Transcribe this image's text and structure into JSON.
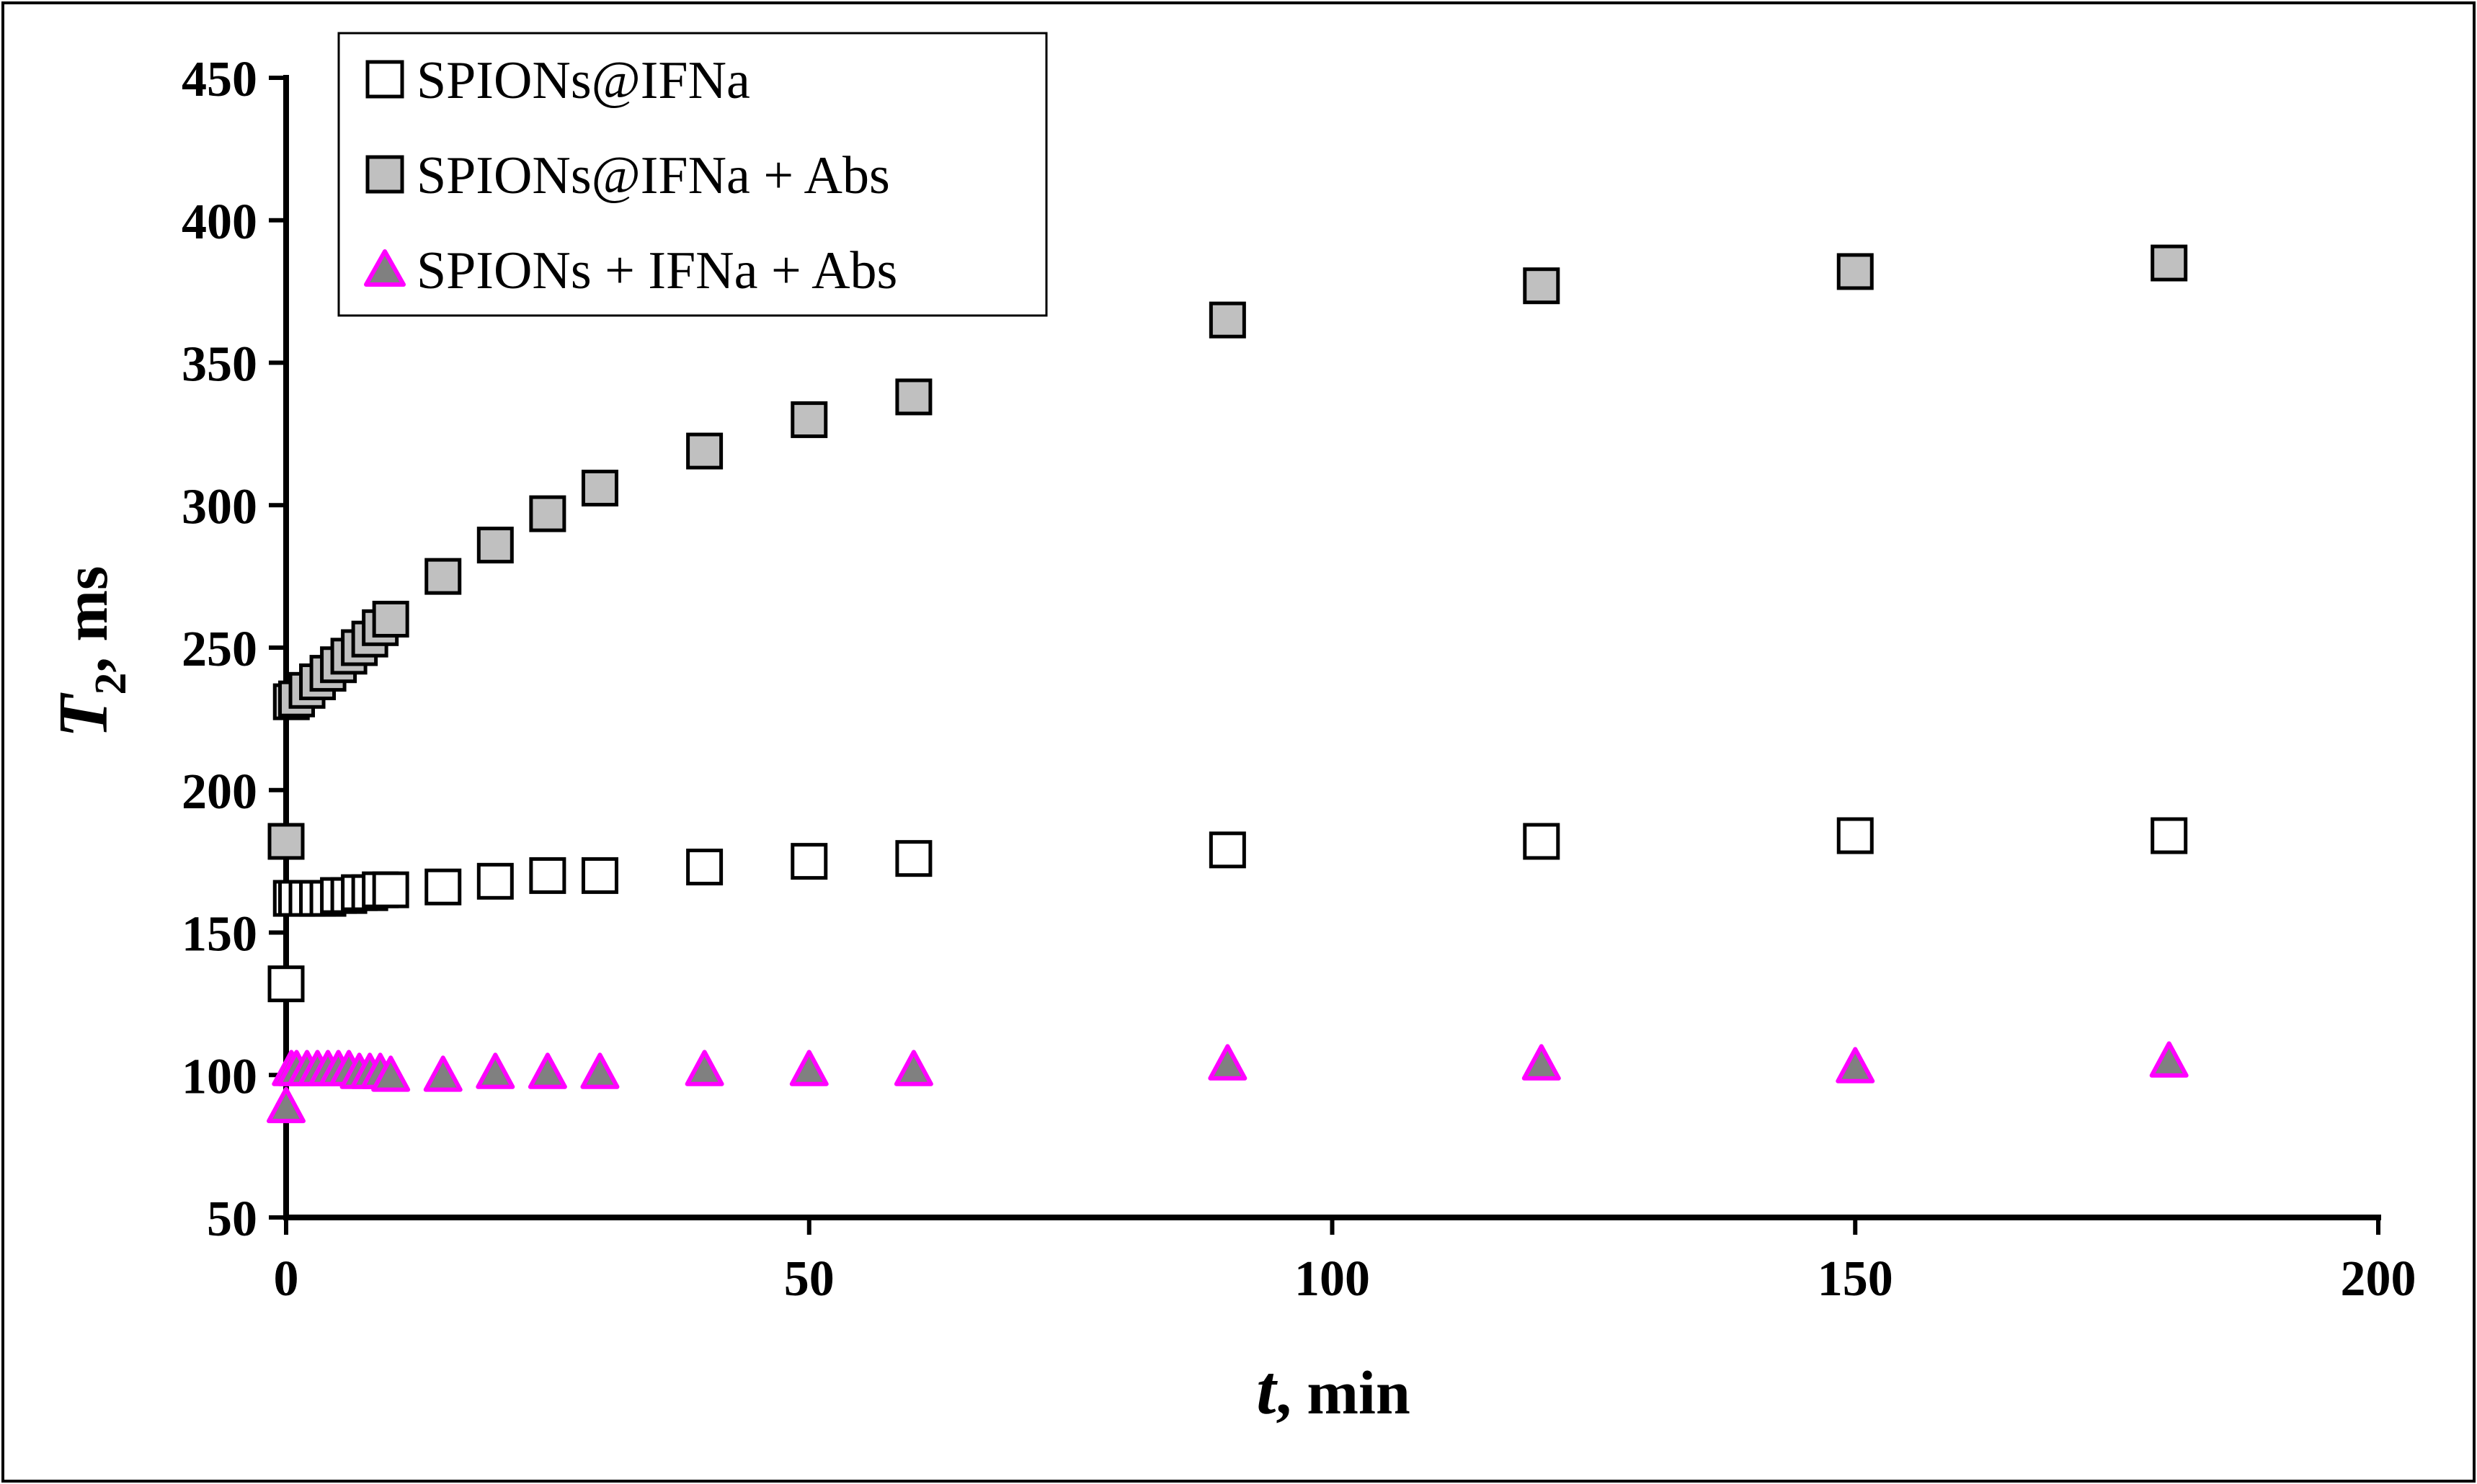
{
  "chart_data": {
    "type": "scatter",
    "title": "",
    "xlabel": {
      "var": "t",
      "unit": ", min"
    },
    "ylabel": {
      "var": "T",
      "sub": "2",
      "unit": ", ms"
    },
    "xlim": [
      0,
      200
    ],
    "ylim": [
      50,
      450
    ],
    "xticks": [
      0,
      50,
      100,
      150,
      200
    ],
    "yticks": [
      50,
      100,
      150,
      200,
      250,
      300,
      350,
      400,
      450
    ],
    "grid": false,
    "legend_position": "top-left",
    "series": [
      {
        "name": "SPIONs@IFNa",
        "marker": "square",
        "fill": "#ffffff",
        "stroke": "#000000",
        "x": [
          0,
          0.5,
          1,
          2,
          3,
          4,
          5,
          6,
          7,
          8,
          9,
          10,
          15,
          20,
          25,
          30,
          40,
          50,
          60,
          90,
          120,
          150,
          180
        ],
        "y": [
          132,
          162,
          162,
          162,
          162,
          162,
          163,
          163,
          164,
          164,
          165,
          165,
          166,
          168,
          170,
          170,
          173,
          175,
          176,
          179,
          182,
          184,
          184
        ]
      },
      {
        "name": "SPIONs@IFNa + Abs",
        "marker": "square",
        "fill": "#c0c0c0",
        "stroke": "#000000",
        "x": [
          0,
          0.5,
          1,
          2,
          3,
          4,
          5,
          6,
          7,
          8,
          9,
          10,
          15,
          20,
          25,
          30,
          40,
          50,
          60,
          90,
          120,
          150,
          180
        ],
        "y": [
          182,
          231,
          232,
          235,
          238,
          241,
          244,
          247,
          250,
          253,
          257,
          260,
          275,
          286,
          297,
          306,
          319,
          330,
          338,
          365,
          377,
          382,
          385
        ]
      },
      {
        "name": "SPIONs + IFNa + Abs",
        "marker": "triangle",
        "fill": "#808080",
        "stroke": "#ff00ff",
        "x": [
          0,
          0.5,
          1,
          2,
          3,
          4,
          5,
          6,
          7,
          8,
          9,
          10,
          15,
          20,
          25,
          30,
          40,
          50,
          60,
          90,
          120,
          150,
          180
        ],
        "y": [
          89,
          102,
          102,
          102,
          102,
          102,
          102,
          102,
          101,
          101,
          101,
          100,
          100,
          101,
          101,
          101,
          102,
          102,
          102,
          104,
          104,
          103,
          105
        ]
      }
    ]
  }
}
